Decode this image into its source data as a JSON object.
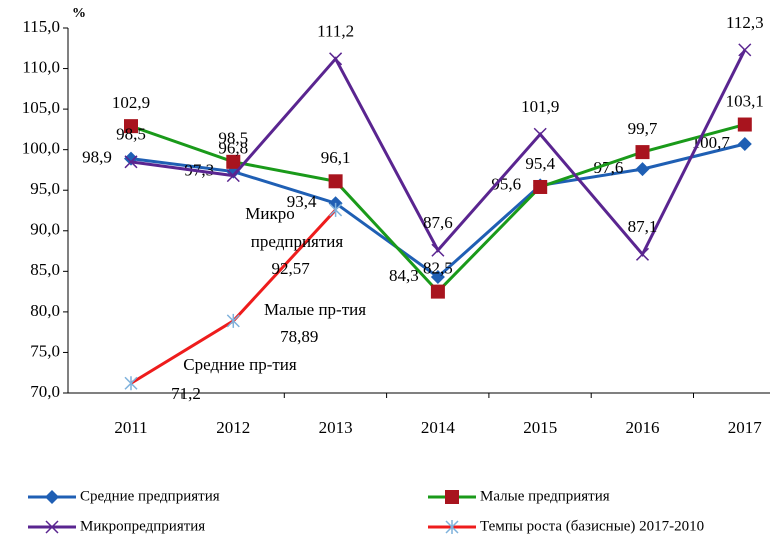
{
  "chart_data": {
    "type": "line",
    "y_unit": "%",
    "categories": [
      "2011",
      "2012",
      "2013",
      "2014",
      "2015",
      "2016",
      "2017"
    ],
    "ylim": [
      70,
      115
    ],
    "yticks": [
      {
        "value": 70,
        "label": "70,0"
      },
      {
        "value": 75,
        "label": "75,0"
      },
      {
        "value": 80,
        "label": "80,0"
      },
      {
        "value": 85,
        "label": "85,0"
      },
      {
        "value": 90,
        "label": "90,0"
      },
      {
        "value": 95,
        "label": "95,0"
      },
      {
        "value": 100,
        "label": "100,0"
      },
      {
        "value": 105,
        "label": "105,0"
      },
      {
        "value": 110,
        "label": "110,0"
      },
      {
        "value": 115,
        "label": "115,0"
      }
    ],
    "grid": false,
    "series": [
      {
        "name": "Средние предприятия",
        "color": "#1f5fb4",
        "marker": "diamond",
        "marker_color": "#1f5fb4",
        "values": [
          98.9,
          97.3,
          93.4,
          84.3,
          95.6,
          97.6,
          100.7
        ],
        "value_labels": [
          "98,9",
          "97,3",
          "93,4",
          "84,3",
          "95,6",
          "97,6",
          "100,7"
        ]
      },
      {
        "name": "Малые предприятия",
        "color": "#1a9a1a",
        "marker": "square",
        "marker_color": "#a8141e",
        "values": [
          102.9,
          98.5,
          96.1,
          82.5,
          95.4,
          99.7,
          103.1
        ],
        "value_labels": [
          "102,9",
          "98,5",
          "96,1",
          "82,5",
          "95,4",
          "99,7",
          "103,1"
        ]
      },
      {
        "name": "Микропредприятия",
        "color": "#5a2590",
        "marker": "x",
        "marker_color": "#5a2590",
        "values": [
          98.5,
          96.8,
          111.2,
          87.6,
          101.9,
          87.1,
          112.3
        ],
        "value_labels": [
          "98,5",
          "96,8",
          "111,2",
          "87,6",
          "101,9",
          "87,1",
          "112,3"
        ]
      },
      {
        "name": "Темпы роста (базисные) 2017-2010",
        "color": "#ee1c1c",
        "marker": "star",
        "marker_color": "#7fb2dc",
        "values": [
          71.2,
          78.89,
          92.57,
          null,
          null,
          null,
          null
        ],
        "value_labels": [
          "71,2",
          "78,89",
          "92,57",
          null,
          null,
          null,
          null
        ]
      }
    ],
    "annotations": [
      "Средние пр-тия",
      "Малые пр-тия",
      "Микро",
      "предприятия"
    ]
  }
}
